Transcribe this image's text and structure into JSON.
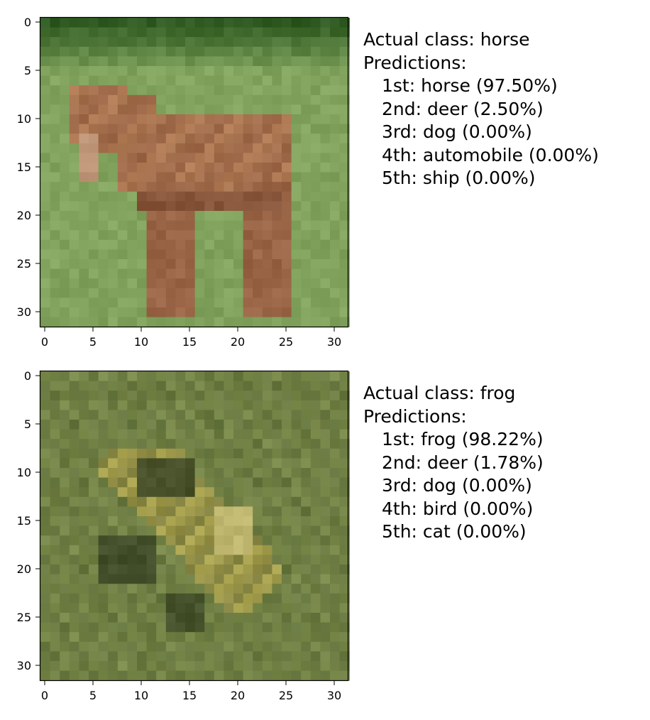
{
  "panels": [
    {
      "actual_label": "Actual class: horse",
      "predictions_label": "Predictions:",
      "predictions": [
        "1st: horse (97.50%)",
        "2nd: deer (2.50%)",
        "3rd: dog (0.00%)",
        "4th: automobile (0.00%)",
        "5th: ship (0.00%)"
      ],
      "x_ticks": [
        "0",
        "5",
        "10",
        "15",
        "20",
        "25",
        "30"
      ],
      "y_ticks": [
        "0",
        "5",
        "10",
        "15",
        "20",
        "25",
        "30"
      ],
      "image_palette": {
        "grass": "#7da05a",
        "grass_dark": "#2f5a22",
        "horse": "#b07a55",
        "horse_dark": "#6a3a26"
      }
    },
    {
      "actual_label": "Actual class: frog",
      "predictions_label": "Predictions:",
      "predictions": [
        "1st: frog (98.22%)",
        "2nd: deer (1.78%)",
        "3rd: dog (0.00%)",
        "4th: bird (0.00%)",
        "5th: cat (0.00%)"
      ],
      "x_ticks": [
        "0",
        "5",
        "10",
        "15",
        "20",
        "25",
        "30"
      ],
      "y_ticks": [
        "0",
        "5",
        "10",
        "15",
        "20",
        "25",
        "30"
      ],
      "image_palette": {
        "grass": "#7a8a4a",
        "grass_dark": "#4b5a30",
        "frog": "#a9a24f",
        "frog_dark": "#2f3a1f"
      }
    }
  ]
}
